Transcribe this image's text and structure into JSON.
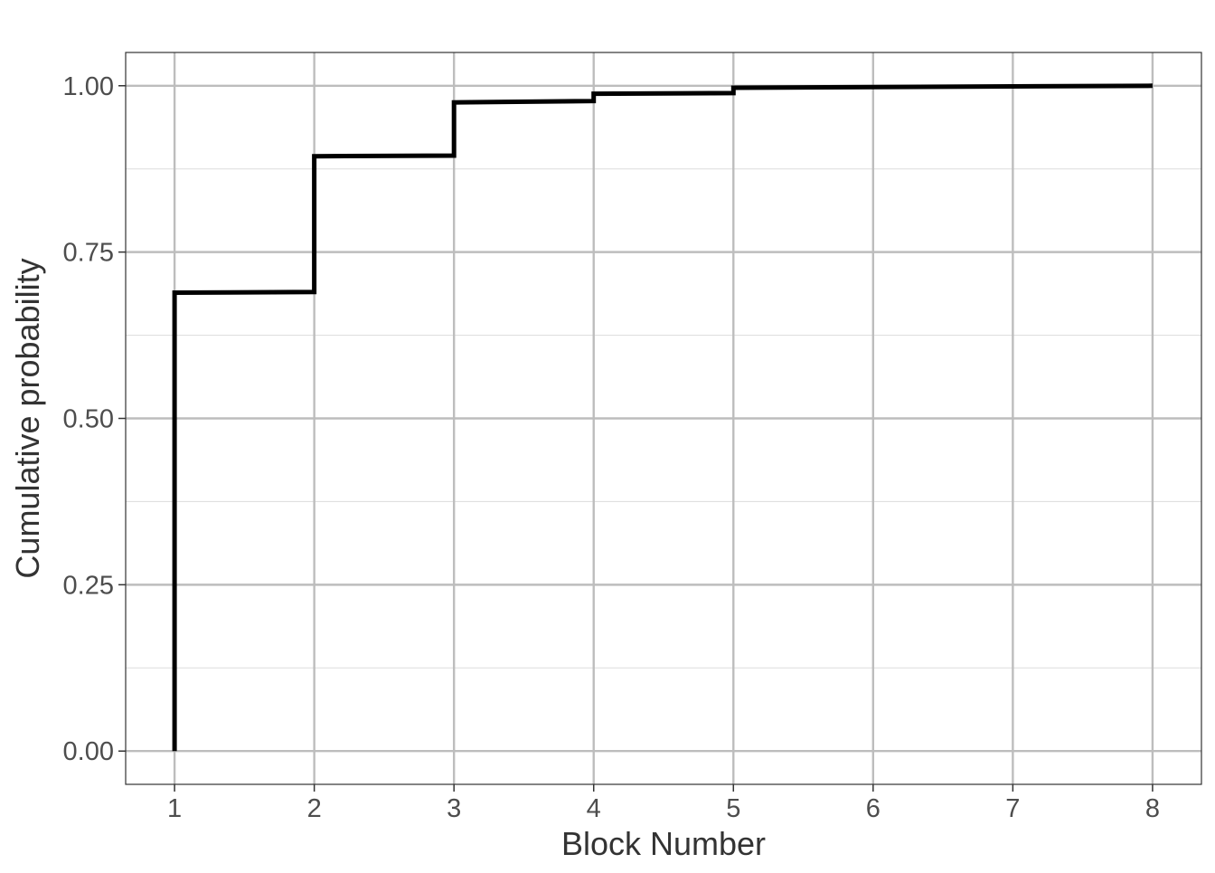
{
  "chart_data": {
    "type": "line",
    "step": true,
    "xlabel": "Block Number",
    "ylabel": "Cumulative probability",
    "x_ticks": [
      "1",
      "2",
      "3",
      "4",
      "5",
      "6",
      "7",
      "8"
    ],
    "y_ticks": [
      "0.00",
      "0.25",
      "0.50",
      "0.75",
      "1.00"
    ],
    "xlim": [
      0.65,
      8.35
    ],
    "ylim": [
      -0.05,
      1.05
    ],
    "grid": true,
    "series": [
      {
        "x": [
          1,
          1,
          2,
          2,
          3,
          3,
          4,
          4,
          5,
          5,
          8
        ],
        "y": [
          0.0,
          0.689,
          0.69,
          0.894,
          0.895,
          0.975,
          0.977,
          0.988,
          0.989,
          0.997,
          1.0
        ],
        "color": "#000000"
      }
    ]
  },
  "colors": {
    "major_grid": "#bdbdbd",
    "minor_grid": "#e0e0e0",
    "panel_border": "#333333",
    "tick_text": "#4d4d4d",
    "axis_title": "#333333",
    "line": "#000000"
  }
}
